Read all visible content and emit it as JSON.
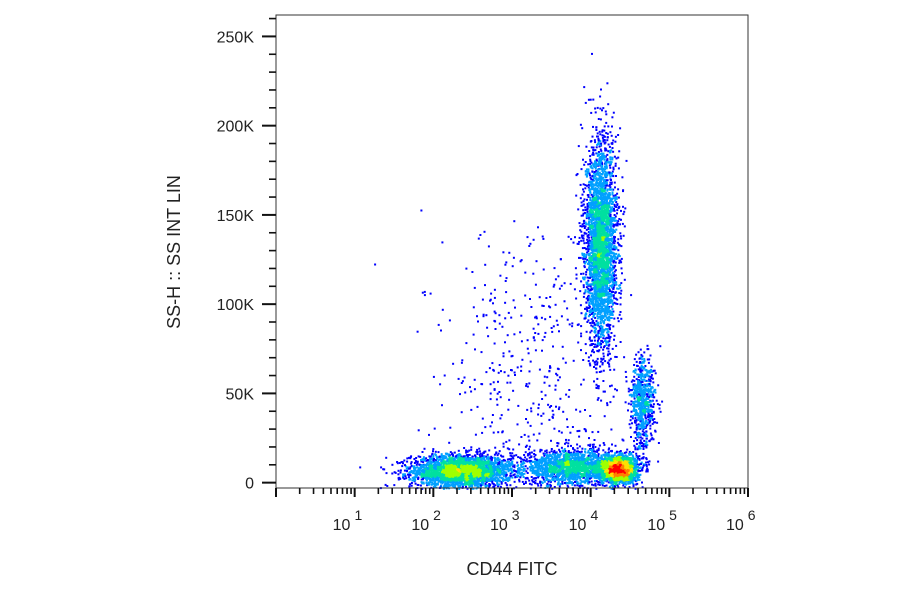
{
  "chart_data": {
    "type": "scatter",
    "subtype": "flow-cytometry-density-dot-plot",
    "xlabel": "CD44 FITC",
    "ylabel": "SS-H :: SS INT LIN",
    "x_scale": "log",
    "xlim": [
      1,
      1000000
    ],
    "x_ticks": [
      {
        "value": 10,
        "base": "10",
        "exp": "1"
      },
      {
        "value": 100,
        "base": "10",
        "exp": "2"
      },
      {
        "value": 1000,
        "base": "10",
        "exp": "3"
      },
      {
        "value": 10000,
        "base": "10",
        "exp": "4"
      },
      {
        "value": 100000,
        "base": "10",
        "exp": "5"
      },
      {
        "value": 1000000,
        "base": "10",
        "exp": "6"
      }
    ],
    "y_scale": "linear",
    "ylim": [
      -3000,
      262000
    ],
    "y_ticks": [
      {
        "value": 0,
        "label": "0"
      },
      {
        "value": 50000,
        "label": "50K"
      },
      {
        "value": 100000,
        "label": "100K"
      },
      {
        "value": 150000,
        "label": "150K"
      },
      {
        "value": 200000,
        "label": "200K"
      },
      {
        "value": 250000,
        "label": "250K"
      }
    ],
    "grid": false,
    "legend": "none",
    "colormap": [
      "#0000ff",
      "#00a0ff",
      "#00e0a0",
      "#a0ff00",
      "#ffe000",
      "#ff8000",
      "#ff0000"
    ],
    "populations": [
      {
        "log_x_center": 2.35,
        "log_x_sd": 0.32,
        "y_center": 7000,
        "y_sd": 4500,
        "count": 3000
      },
      {
        "log_x_center": 3.75,
        "log_x_sd": 0.3,
        "y_center": 9000,
        "y_sd": 5000,
        "count": 1800
      },
      {
        "log_x_center": 4.35,
        "log_x_sd": 0.11,
        "y_center": 8000,
        "y_sd": 3500,
        "count": 2600
      },
      {
        "log_x_center": 4.65,
        "log_x_sd": 0.08,
        "y_center": 45000,
        "y_sd": 13000,
        "count": 700
      },
      {
        "log_x_center": 4.12,
        "log_x_sd": 0.1,
        "y_center": 133000,
        "y_sd": 28000,
        "count": 3400
      },
      {
        "log_x_center": 3.25,
        "log_x_sd": 0.55,
        "y_center": 60000,
        "y_sd": 45000,
        "count": 450
      }
    ]
  }
}
